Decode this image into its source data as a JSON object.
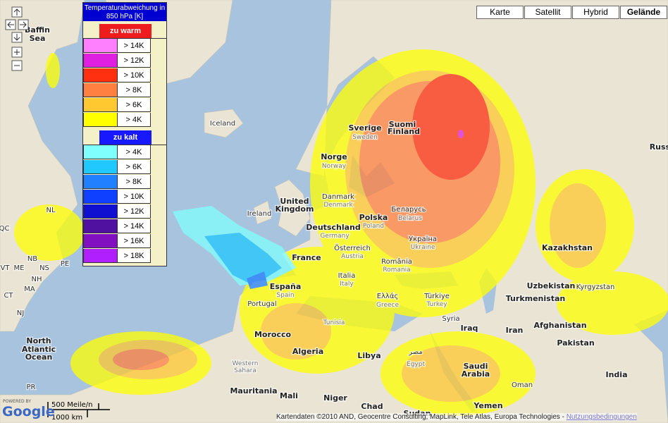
{
  "map_types": [
    "Karte",
    "Satellit",
    "Hybrid",
    "Gelände"
  ],
  "selected_map_type": "Gelände",
  "legend": {
    "title": "Temperaturabweichung in 850 hPa [K]",
    "warm_header": "zu warm",
    "warm_header_color": "#ee1c1c",
    "warm": [
      {
        "label": "> 14K",
        "color": "#ff80ff"
      },
      {
        "label": "> 12K",
        "color": "#e020e0"
      },
      {
        "label": "> 10K",
        "color": "#ff3010"
      },
      {
        "label": "> 8K",
        "color": "#ff8040"
      },
      {
        "label": "> 6K",
        "color": "#ffc830"
      },
      {
        "label": "> 4K",
        "color": "#ffff00"
      }
    ],
    "cold_header": "zu kalt",
    "cold_header_color": "#1818ff",
    "cold": [
      {
        "label": "> 4K",
        "color": "#80ffff"
      },
      {
        "label": "> 6K",
        "color": "#20c8ff"
      },
      {
        "label": "> 8K",
        "color": "#2080ff"
      },
      {
        "label": "> 10K",
        "color": "#1040ff"
      },
      {
        "label": "> 12K",
        "color": "#1010d0"
      },
      {
        "label": "> 14K",
        "color": "#5010a0"
      },
      {
        "label": "> 16K",
        "color": "#8010c0"
      },
      {
        "label": "> 18K",
        "color": "#b020ff"
      }
    ]
  },
  "places": [
    "Baffin",
    "Sea",
    "Iceland",
    "Sverige",
    "Sweden",
    "Suomi",
    "Finland",
    "Norge",
    "Norway",
    "United",
    "Kingdom",
    "Ireland",
    "Danmark",
    "Denmark",
    "Polska",
    "Poland",
    "Беларусь",
    "Belarus",
    "Deutschland",
    "Germany",
    "Україна",
    "Ukraine",
    "France",
    "Österreich",
    "Austria",
    "România",
    "Romania",
    "Italia",
    "Italy",
    "España",
    "Spain",
    "Portugal",
    "Ελλάς",
    "Greece",
    "Türkiye",
    "Turkey",
    "Syria",
    "Iraq",
    "Iran",
    "Kazakhstan",
    "Uzbekistan",
    "Kyrgyzstan",
    "Turkmenistan",
    "Afghanistan",
    "Pakistan",
    "India",
    "Tunisia",
    "Morocco",
    "Algeria",
    "Libya",
    "مصر",
    "Egypt",
    "Saudi",
    "Arabia",
    "Western",
    "Sahara",
    "Mauritania",
    "Mali",
    "Niger",
    "Chad",
    "Sudan",
    "Yemen",
    "Oman",
    "North",
    "Atlantic",
    "Ocean",
    "NL",
    "QC",
    "NB",
    "ME",
    "VT",
    "NS",
    "PE",
    "NH",
    "MA",
    "CT",
    "NJ",
    "PR",
    "Russia"
  ],
  "scale": {
    "miles": "500 Meile/n",
    "km": "1000 km"
  },
  "powered_by": "POWERED BY",
  "logo": "Google",
  "attribution": "Kartendaten ©2010 AND, Geocentre Consulting, MapLink, Tele Atlas, Europa Technologies -",
  "terms_link": "Nutzungsbedingungen"
}
